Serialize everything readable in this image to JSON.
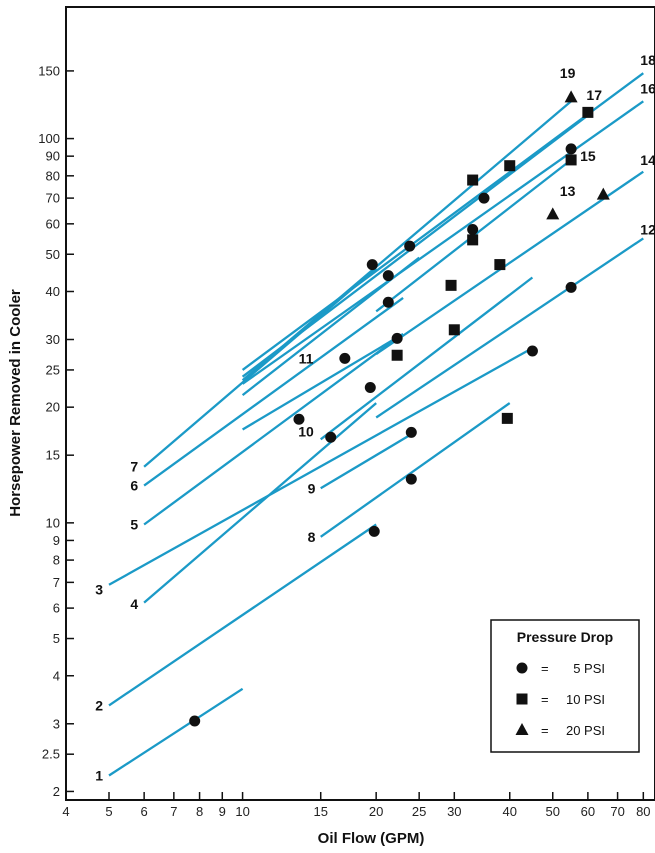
{
  "chart_data": {
    "type": "line",
    "xlabel": "Oil Flow (GPM)",
    "ylabel": "Horsepower Removed in Cooler",
    "x_scale": "log",
    "y_scale": "log",
    "xlim": [
      4,
      85
    ],
    "ylim": [
      1.9,
      220
    ],
    "x_ticks": [
      4,
      5,
      6,
      7,
      8,
      9,
      10,
      15,
      20,
      25,
      30,
      40,
      50,
      60,
      70,
      80
    ],
    "y_ticks": [
      2,
      2.5,
      3,
      4,
      5,
      6,
      7,
      8,
      9,
      10,
      15,
      20,
      25,
      30,
      40,
      50,
      60,
      70,
      80,
      90,
      100,
      150
    ],
    "line_color": "#1b9ac7",
    "series": [
      {
        "name": "1",
        "x": [
          5,
          10
        ],
        "y": [
          2.2,
          3.7
        ]
      },
      {
        "name": "2",
        "x": [
          5,
          20
        ],
        "y": [
          3.35,
          9.9
        ]
      },
      {
        "name": "3",
        "x": [
          5,
          45
        ],
        "y": [
          6.9,
          28.5
        ]
      },
      {
        "name": "4",
        "x": [
          6,
          20
        ],
        "y": [
          6.2,
          20.5
        ]
      },
      {
        "name": "5",
        "x": [
          6,
          22.5
        ],
        "y": [
          9.9,
          30.5
        ]
      },
      {
        "name": "6",
        "x": [
          6,
          23
        ],
        "y": [
          12.5,
          38.5
        ]
      },
      {
        "name": "7",
        "x": [
          6,
          20
        ],
        "y": [
          14,
          46
        ]
      },
      {
        "name": "8",
        "x": [
          15,
          40
        ],
        "y": [
          9.2,
          20.5
        ]
      },
      {
        "name": "9",
        "x": [
          15,
          24
        ],
        "y": [
          12.3,
          17
        ]
      },
      {
        "name": "10",
        "x": [
          10,
          23
        ],
        "y": [
          17.5,
          31
        ]
      },
      {
        "name": "11",
        "x": [
          10,
          25
        ],
        "y": [
          21.5,
          49
        ]
      },
      {
        "name": "12",
        "x": [
          20,
          80
        ],
        "y": [
          18.8,
          55
        ]
      },
      {
        "name": "13",
        "x": [
          15,
          45
        ],
        "y": [
          16.5,
          43.5
        ]
      },
      {
        "name": "14",
        "x": [
          20,
          80
        ],
        "y": [
          27.5,
          82
        ]
      },
      {
        "name": "15",
        "x": [
          20,
          55
        ],
        "y": [
          35.5,
          88
        ]
      },
      {
        "name": "16",
        "x": [
          10,
          80
        ],
        "y": [
          23,
          125
        ]
      },
      {
        "name": "17",
        "x": [
          10,
          60
        ],
        "y": [
          24,
          115
        ]
      },
      {
        "name": "18",
        "x": [
          10,
          80
        ],
        "y": [
          25,
          148
        ]
      },
      {
        "name": "19",
        "x": [
          10,
          55
        ],
        "y": [
          23.5,
          125
        ]
      }
    ],
    "markers": [
      {
        "shape": "circle",
        "x": 7.8,
        "y": 3.05
      },
      {
        "shape": "circle",
        "x": 19.8,
        "y": 9.5
      },
      {
        "shape": "circle",
        "x": 24,
        "y": 13
      },
      {
        "shape": "circle",
        "x": 24,
        "y": 17.2
      },
      {
        "shape": "circle",
        "x": 45,
        "y": 28
      },
      {
        "shape": "circle",
        "x": 55,
        "y": 41
      },
      {
        "shape": "circle",
        "x": 13.4,
        "y": 18.6
      },
      {
        "shape": "circle",
        "x": 15.8,
        "y": 16.7
      },
      {
        "shape": "circle",
        "x": 19.4,
        "y": 22.5
      },
      {
        "shape": "circle",
        "x": 17,
        "y": 26.8
      },
      {
        "shape": "circle",
        "x": 22.3,
        "y": 30.2
      },
      {
        "shape": "circle",
        "x": 21.3,
        "y": 37.5
      },
      {
        "shape": "circle",
        "x": 21.3,
        "y": 44
      },
      {
        "shape": "circle",
        "x": 19.6,
        "y": 47
      },
      {
        "shape": "circle",
        "x": 23.8,
        "y": 52.5
      },
      {
        "shape": "circle",
        "x": 33,
        "y": 58
      },
      {
        "shape": "circle",
        "x": 35,
        "y": 70
      },
      {
        "shape": "circle",
        "x": 55,
        "y": 94
      },
      {
        "shape": "square",
        "x": 22.3,
        "y": 27.3
      },
      {
        "shape": "square",
        "x": 30,
        "y": 31.8
      },
      {
        "shape": "square",
        "x": 29.5,
        "y": 41.5
      },
      {
        "shape": "square",
        "x": 38,
        "y": 47
      },
      {
        "shape": "square",
        "x": 33,
        "y": 54.5
      },
      {
        "shape": "square",
        "x": 33,
        "y": 78
      },
      {
        "shape": "square",
        "x": 40,
        "y": 85
      },
      {
        "shape": "square",
        "x": 55,
        "y": 88
      },
      {
        "shape": "square",
        "x": 60,
        "y": 117
      },
      {
        "shape": "square",
        "x": 39.5,
        "y": 18.7
      },
      {
        "shape": "triangle",
        "x": 50,
        "y": 63.5
      },
      {
        "shape": "triangle",
        "x": 65,
        "y": 71.5
      },
      {
        "shape": "triangle",
        "x": 55,
        "y": 128
      }
    ],
    "curve_labels": [
      {
        "text": "1",
        "x": 4.75,
        "y": 2.2
      },
      {
        "text": "2",
        "x": 4.75,
        "y": 3.35
      },
      {
        "text": "3",
        "x": 4.75,
        "y": 6.7
      },
      {
        "text": "4",
        "x": 5.7,
        "y": 6.15
      },
      {
        "text": "5",
        "x": 5.7,
        "y": 9.9
      },
      {
        "text": "6",
        "x": 5.7,
        "y": 12.5
      },
      {
        "text": "7",
        "x": 5.7,
        "y": 14.0
      },
      {
        "text": "8",
        "x": 14.3,
        "y": 9.2
      },
      {
        "text": "9",
        "x": 14.3,
        "y": 12.3
      },
      {
        "text": "10",
        "x": 13.9,
        "y": 17.3
      },
      {
        "text": "11",
        "x": 13.9,
        "y": 26.8
      },
      {
        "text": "12",
        "x": 82,
        "y": 58
      },
      {
        "text": "13",
        "x": 54,
        "y": 73
      },
      {
        "text": "14",
        "x": 82,
        "y": 88
      },
      {
        "text": "15",
        "x": 60,
        "y": 90
      },
      {
        "text": "16",
        "x": 82,
        "y": 135
      },
      {
        "text": "17",
        "x": 62,
        "y": 130
      },
      {
        "text": "18",
        "x": 82,
        "y": 160
      },
      {
        "text": "19",
        "x": 54,
        "y": 148
      }
    ],
    "legend": {
      "title": "Pressure Drop",
      "position": "bottom-right",
      "entries": [
        {
          "shape": "circle",
          "eq": "=",
          "label": "5 PSI"
        },
        {
          "shape": "square",
          "eq": "=",
          "label": "10 PSI"
        },
        {
          "shape": "triangle",
          "eq": "=",
          "label": "20 PSI"
        }
      ]
    },
    "grid": false
  }
}
